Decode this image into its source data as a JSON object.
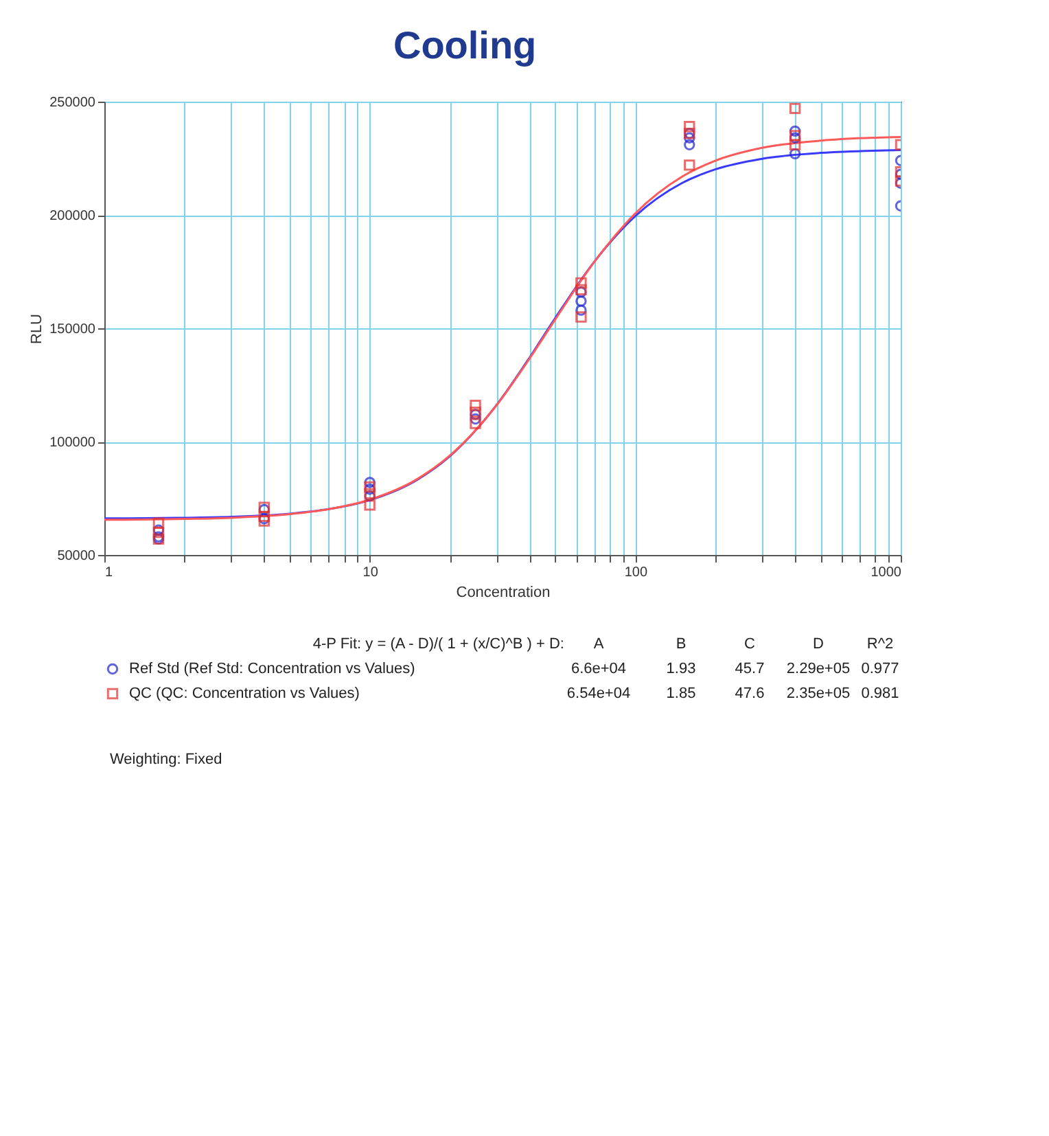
{
  "chart_data": {
    "type": "scatter",
    "title": "Cooling",
    "xlabel": "Concentration",
    "ylabel": "RLU",
    "log": "x",
    "grid": true,
    "legend": "bottom",
    "xlim": [
      1,
      1000
    ],
    "ylim": [
      50000,
      250000
    ],
    "xticks": [
      1,
      {
        "value": 2,
        "label": null
      },
      {
        "value": 3,
        "label": null
      },
      {
        "value": 4,
        "label": null
      },
      {
        "value": 5,
        "label": null
      },
      {
        "value": 6,
        "label": null
      },
      {
        "value": 7,
        "label": null
      },
      {
        "value": 8,
        "label": null
      },
      {
        "value": 9,
        "label": null
      },
      10,
      {
        "value": 20,
        "label": null
      },
      {
        "value": 30,
        "label": null
      },
      {
        "value": 40,
        "label": null
      },
      {
        "value": 50,
        "label": null
      },
      {
        "value": 60,
        "label": null
      },
      {
        "value": 70,
        "label": null
      },
      {
        "value": 80,
        "label": null
      },
      {
        "value": 90,
        "label": null
      },
      100,
      {
        "value": 200,
        "label": null
      },
      {
        "value": 300,
        "label": null
      },
      {
        "value": 400,
        "label": null
      },
      {
        "value": 500,
        "label": null
      },
      {
        "value": 600,
        "label": null
      },
      {
        "value": 700,
        "label": null
      },
      {
        "value": 800,
        "label": null
      },
      {
        "value": 900,
        "label": null
      },
      1000
    ],
    "yticks": [
      50000,
      100000,
      150000,
      200000,
      250000
    ],
    "series": [
      {
        "type": "line",
        "color": "#3a3aff",
        "marker": "none",
        "line_style": "solid",
        "x": [
          1,
          2,
          3,
          5,
          7,
          10,
          15,
          20,
          30,
          40,
          50,
          70,
          100,
          150,
          200,
          300,
          500,
          1000
        ],
        "values": [
          66100,
          66400,
          66800,
          68200,
          70200,
          74200,
          83000,
          93500,
          116100,
          137100,
          154600,
          179300,
          199500,
          214100,
          220100,
          224800,
          227400,
          228600
        ]
      },
      {
        "type": "line",
        "color": "#ff5a5a",
        "marker": "none",
        "line_style": "solid",
        "x": [
          1,
          2,
          3,
          5,
          7,
          10,
          15,
          20,
          30,
          40,
          50,
          70,
          100,
          150,
          200,
          300,
          500,
          1000
        ],
        "values": [
          65500,
          65900,
          66400,
          68000,
          70200,
          74400,
          83300,
          93800,
          116000,
          136700,
          154000,
          179200,
          200700,
          216900,
          223900,
          229600,
          232800,
          234400
        ]
      },
      {
        "name": "Ref Std (Ref Std: Concentration vs Values)",
        "color": "#2222cc",
        "marker": "circle",
        "x": [
          1.6,
          1.6,
          1.6,
          4,
          4,
          10,
          10,
          10,
          25,
          25,
          62.5,
          62.5,
          62.5,
          160,
          160,
          160,
          400,
          400,
          400,
          1000,
          1000,
          1000,
          1000
        ],
        "values": [
          61000,
          58000,
          57000,
          70000,
          66000,
          82000,
          79000,
          76000,
          112000,
          110000,
          166000,
          162000,
          158000,
          236000,
          234000,
          231000,
          237000,
          234000,
          227000,
          224000,
          218000,
          214000,
          204000
        ]
      },
      {
        "name": "QC (QC: Concentration vs Values)",
        "color": "#e03030",
        "marker": "square",
        "x": [
          1.6,
          1.6,
          1.6,
          4,
          4,
          4,
          10,
          10,
          10,
          25,
          25,
          25,
          62.5,
          62.5,
          62.5,
          160,
          160,
          160,
          400,
          400,
          400,
          1000,
          1000,
          1000
        ],
        "values": [
          64000,
          60000,
          57000,
          71000,
          67000,
          65000,
          80000,
          77000,
          72000,
          116000,
          113000,
          108000,
          170000,
          167000,
          155000,
          239000,
          236000,
          222000,
          247000,
          235000,
          231000,
          231000,
          219000,
          215000
        ]
      }
    ],
    "annotations": [
      "4-P Fit: y = (A - D)/( 1 + (x/C)^B ) + D:",
      "A",
      "B",
      "C",
      "D",
      "R^2",
      "6.6e+04",
      "1.93",
      "45.7",
      "2.29e+05",
      "0.977",
      "6.54e+04",
      "1.85",
      "47.6",
      "2.35e+05",
      "0.981",
      "Weighting: Fixed"
    ]
  }
}
